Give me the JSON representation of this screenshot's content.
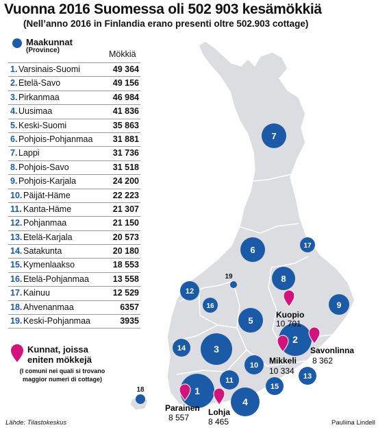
{
  "title": "Vuonna 2016 Suomessa oli 502 903 kesämökkiä",
  "subtitle": "(Nell’anno 2016 in Finlandia erano presenti oltre 502.903 cottage)",
  "legend": {
    "label": "Maakunnat",
    "sublabel": "(Province)",
    "dot_color": "#1a5aa6"
  },
  "column_header": "Mökkiä",
  "ranking": [
    {
      "rank": "1.",
      "name": "Varsinais-Suomi",
      "value": "49 364"
    },
    {
      "rank": "2.",
      "name": "Etelä-Savo",
      "value": "49 156"
    },
    {
      "rank": "3.",
      "name": "Pirkanmaa",
      "value": "46 984"
    },
    {
      "rank": "4.",
      "name": "Uusimaa",
      "value": "41 836"
    },
    {
      "rank": "5.",
      "name": "Keski-Suomi",
      "value": "35 863"
    },
    {
      "rank": "6.",
      "name": "Pohjois-Pohjanmaa",
      "value": "31 881"
    },
    {
      "rank": "7.",
      "name": "Lappi",
      "value": "31 736"
    },
    {
      "rank": "8.",
      "name": "Pohjois-Savo",
      "value": "31 518"
    },
    {
      "rank": "9.",
      "name": "Pohjois-Karjala",
      "value": "24 200"
    },
    {
      "rank": "10.",
      "name": "Päijät-Häme",
      "value": "22 223"
    },
    {
      "rank": "11.",
      "name": "Kanta-Häme",
      "value": "21 307"
    },
    {
      "rank": "12.",
      "name": "Pohjanmaa",
      "value": "21 150"
    },
    {
      "rank": "13.",
      "name": "Etelä-Karjala",
      "value": "20 573"
    },
    {
      "rank": "14.",
      "name": "Satakunta",
      "value": "20 180"
    },
    {
      "rank": "15.",
      "name": "Kymenlaakso",
      "value": "18 553"
    },
    {
      "rank": "16.",
      "name": "Etelä-Pohjanmaa",
      "value": "13 558"
    },
    {
      "rank": "17.",
      "name": "Kainuu",
      "value": "12 529"
    },
    {
      "rank": "18.",
      "name": "Ahvenanmaa",
      "value": "6357"
    },
    {
      "rank": "19.",
      "name": "Keski-Pohjanmaa",
      "value": "3935"
    }
  ],
  "map_bubbles": [
    {
      "label": "1"
    },
    {
      "label": "2"
    },
    {
      "label": "3"
    },
    {
      "label": "4"
    },
    {
      "label": "5"
    },
    {
      "label": "6"
    },
    {
      "label": "7"
    },
    {
      "label": "8"
    },
    {
      "label": "9"
    },
    {
      "label": "10"
    },
    {
      "label": "11"
    },
    {
      "label": "12"
    },
    {
      "label": "13"
    },
    {
      "label": "14"
    },
    {
      "label": "15"
    },
    {
      "label": "16"
    },
    {
      "label": "17"
    },
    {
      "label": "18"
    },
    {
      "label": "19"
    }
  ],
  "pin_legend": {
    "title": "Kunnat, joissa eniten mökkejä",
    "note": "(I comuni nei quali si trovano maggior numeri di cottage)",
    "pin_color": "#d4127c"
  },
  "cities": [
    {
      "name": "Kuopio",
      "value": "10 701"
    },
    {
      "name": "Savonlinna",
      "value": "8 362"
    },
    {
      "name": "Mikkeli",
      "value": "10 334"
    },
    {
      "name": "Parainen",
      "value": "8 557"
    },
    {
      "name": "Lohja",
      "value": "8 465"
    }
  ],
  "source": "Lähde: Tilastokeskus",
  "author": "Pauliina Lindell",
  "colors": {
    "map_fill": "#dcdde1",
    "map_border": "#ffffff",
    "bubble": "#1a5aa6",
    "pin": "#d4127c"
  }
}
